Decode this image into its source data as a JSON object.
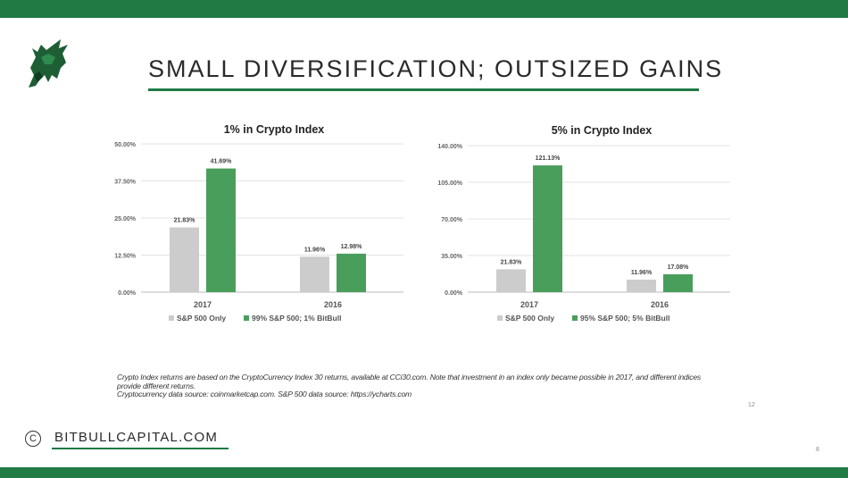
{
  "slide": {
    "title": "SMALL DIVERSIFICATION; OUTSIZED GAINS",
    "brand": "BITBULLCAPITAL.COM",
    "brand_symbol": "C",
    "page_number_inner": "12",
    "page_number_outer": "8",
    "footnote_line1": "Crypto Index returns are based on the CryptoCurrency Index 30 returns, available at CCi30.com. Note that investment in an index only became possible in 2017, and different indices provide different returns.",
    "footnote_line2": "Cryptocurrency data source: coinmarketcap.com. S&P 500 data source: https://ycharts.com",
    "accent_color": "#1f7a44",
    "logo_icon": "bull-icon"
  },
  "chart_data": [
    {
      "type": "bar",
      "title": "1% in Crypto Index",
      "categories": [
        "2017",
        "2016"
      ],
      "series": [
        {
          "name": "S&P 500 Only",
          "values": [
            21.83,
            11.96
          ],
          "labels": [
            "21.83%",
            "11.96%"
          ],
          "color": "#cccccc"
        },
        {
          "name": "99% S&P 500; 1% BitBull",
          "values": [
            41.69,
            12.98
          ],
          "labels": [
            "41.69%",
            "12.98%"
          ],
          "color": "#4a9e5c"
        }
      ],
      "ylim": [
        0,
        50
      ],
      "yticks": [
        0,
        12.5,
        25,
        37.5,
        50
      ],
      "ytick_labels": [
        "0.00%",
        "12.50%",
        "25.00%",
        "37.50%",
        "50.00%"
      ],
      "grid": true,
      "legend": "bottom"
    },
    {
      "type": "bar",
      "title": "5% in Crypto Index",
      "categories": [
        "2017",
        "2016"
      ],
      "series": [
        {
          "name": "S&P 500 Only",
          "values": [
            21.83,
            11.96
          ],
          "labels": [
            "21.83%",
            "11.96%"
          ],
          "color": "#cccccc"
        },
        {
          "name": "95% S&P 500; 5% BitBull",
          "values": [
            121.13,
            17.08
          ],
          "labels": [
            "121.13%",
            "17.08%"
          ],
          "color": "#4a9e5c"
        }
      ],
      "ylim": [
        0,
        140
      ],
      "yticks": [
        0,
        35,
        70,
        105,
        140
      ],
      "ytick_labels": [
        "0.00%",
        "35.00%",
        "70.00%",
        "105.00%",
        "140.00%"
      ],
      "grid": true,
      "legend": "bottom"
    }
  ]
}
